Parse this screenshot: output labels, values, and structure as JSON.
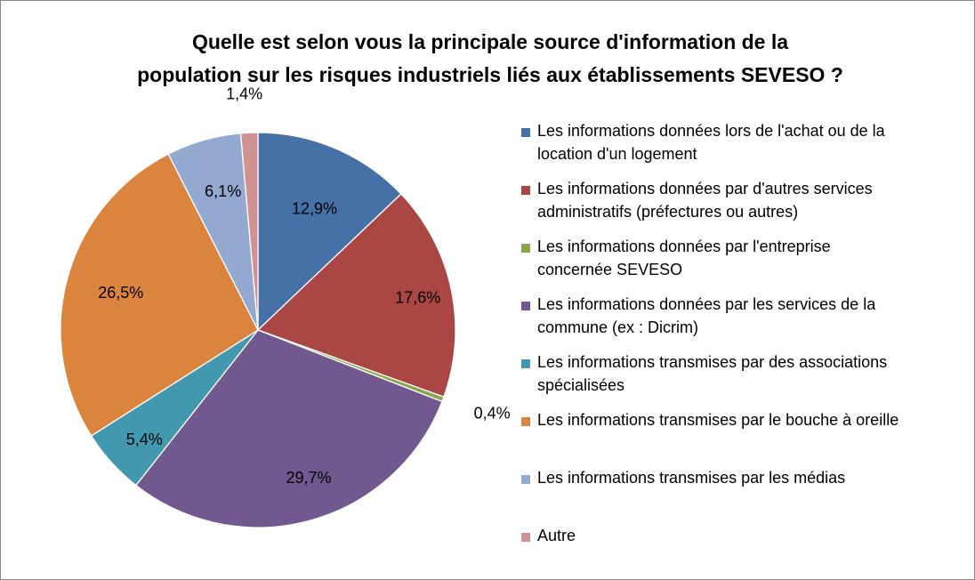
{
  "chart_data": {
    "type": "pie",
    "title": "Quelle est selon vous la principale source d'information de la population sur les risques industriels liés aux établissements SEVESO ?",
    "title_lines": [
      "Quelle est selon vous la principale source d'information de la",
      "population sur les risques industriels liés aux établissements SEVESO ?"
    ],
    "categories": [
      "Les informations données lors de l'achat ou de la location d'un logement",
      "Les informations données par d'autres services administratifs (préfectures ou autres)",
      "Les informations données par l'entreprise concernée SEVESO",
      "Les informations données par les services de la commune (ex : Dicrim)",
      "Les informations transmises par des associations spécialisées",
      "Les informations transmises par le bouche à oreille",
      "Les informations transmises par les médias",
      "Autre"
    ],
    "legend_lines": [
      [
        "Les informations données lors de l'achat ou de la",
        "location d'un logement"
      ],
      [
        "Les informations données par d'autres services",
        "administratifs (préfectures ou autres)"
      ],
      [
        "Les informations données par l'entreprise",
        "concernée SEVESO"
      ],
      [
        "Les informations données par les services de la",
        "commune (ex : Dicrim)"
      ],
      [
        "Les informations transmises par des associations",
        "spécialisées"
      ],
      [
        "Les informations transmises par le bouche à oreille"
      ],
      [
        "Les informations transmises par les médias"
      ],
      [
        "Autre"
      ]
    ],
    "values": [
      12.9,
      17.6,
      0.4,
      29.7,
      5.4,
      26.5,
      6.1,
      1.4
    ],
    "data_labels": [
      "12,9%",
      "17,6%",
      "0,4%",
      "29,7%",
      "5,4%",
      "26,5%",
      "6,1%",
      "1,4%"
    ],
    "colors": [
      "#4571A7",
      "#AA4644",
      "#89A54E",
      "#71588F",
      "#4198AF",
      "#DB843D",
      "#93A9CF",
      "#D19392"
    ],
    "start_angle": "12 o'clock",
    "direction": "clockwise",
    "legend_placement": "right"
  }
}
